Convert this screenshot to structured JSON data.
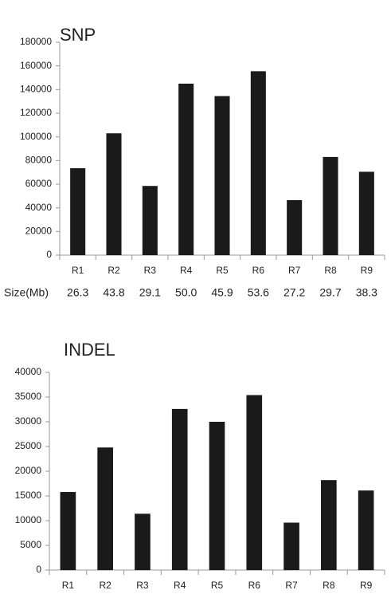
{
  "chart_data": [
    {
      "type": "bar",
      "title": "SNP",
      "categories": [
        "R1",
        "R2",
        "R3",
        "R4",
        "R5",
        "R6",
        "R7",
        "R8",
        "R9"
      ],
      "values": [
        73500,
        103000,
        58500,
        145000,
        134500,
        155500,
        46500,
        83000,
        70500
      ],
      "color": "#1a1a1a",
      "ylim": [
        0,
        180000
      ],
      "yticks": [
        0,
        20000,
        40000,
        60000,
        80000,
        100000,
        120000,
        140000,
        160000,
        180000
      ],
      "grid": false,
      "size_row": {
        "label": "Size(Mb)",
        "values": [
          26.3,
          43.8,
          29.1,
          50.0,
          45.9,
          53.6,
          27.2,
          29.7,
          38.3
        ],
        "value_labels": [
          "26.3",
          "43.8",
          "29.1",
          "50.0",
          "45.9",
          "53.6",
          "27.2",
          "29.7",
          "38.3"
        ]
      }
    },
    {
      "type": "bar",
      "title": "INDEL",
      "categories": [
        "R1",
        "R2",
        "R3",
        "R4",
        "R5",
        "R6",
        "R7",
        "R8",
        "R9"
      ],
      "values": [
        15800,
        24800,
        11400,
        32600,
        30000,
        35400,
        9600,
        18200,
        16100
      ],
      "color": "#1a1a1a",
      "ylim": [
        0,
        40000
      ],
      "yticks": [
        0,
        5000,
        10000,
        15000,
        20000,
        25000,
        30000,
        35000,
        40000
      ],
      "grid": false
    }
  ]
}
